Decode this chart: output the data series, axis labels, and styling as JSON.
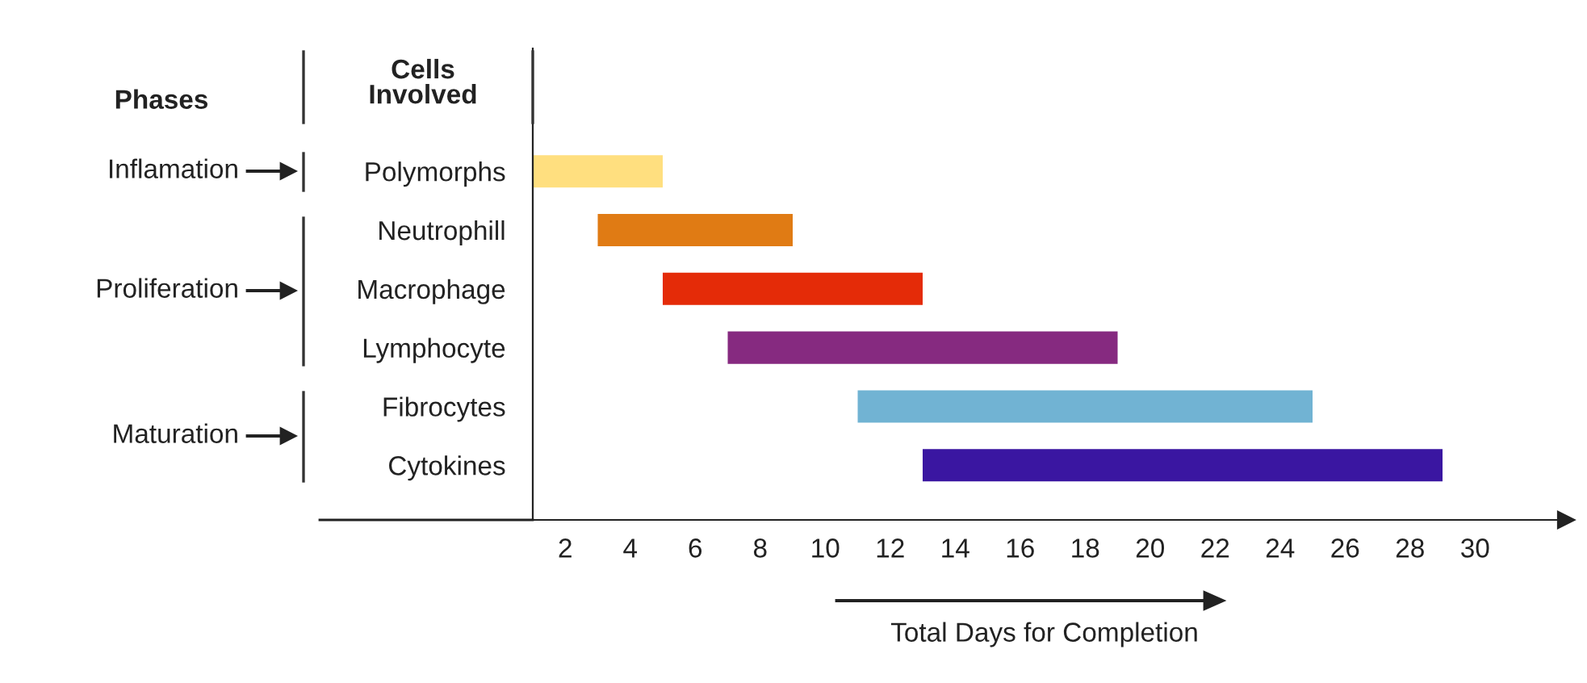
{
  "chart_data": {
    "type": "bar",
    "orientation": "horizontal",
    "xlabel": "Total Days for Completion",
    "categories": [
      "Polymorphs",
      "Neutrophill",
      "Macrophage",
      "Lymphocyte",
      "Fibrocytes",
      "Cytokines"
    ],
    "base": [
      1,
      3,
      5,
      7,
      11,
      13
    ],
    "values": [
      4,
      6,
      8,
      12,
      14,
      16
    ],
    "colors": [
      "#ffdf7f",
      "#e07b14",
      "#e42b08",
      "#862a80",
      "#71b3d3",
      "#3a16a1"
    ],
    "xlim": [
      1,
      32.8
    ],
    "xticks": [
      2,
      4,
      6,
      8,
      10,
      12,
      14,
      16,
      18,
      20,
      22,
      24,
      26,
      28,
      30
    ],
    "grid": false,
    "legend": false,
    "annotations": [
      "Phases",
      "Cells\nInvolved",
      "Inflamation",
      "Proliferation",
      "Maturation"
    ]
  }
}
